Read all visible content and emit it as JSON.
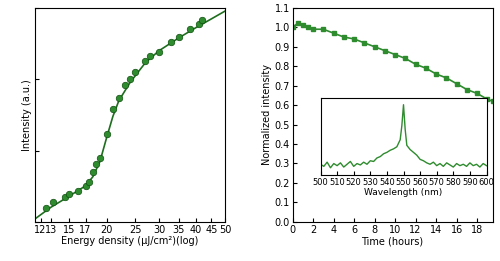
{
  "chart_data": [
    {
      "type": "scatter",
      "x_label": "Energy density (μJ/cm²)(log)",
      "y_label": "Intensity (a.u.)",
      "log": true,
      "tick_labels": "x",
      "xlim": [
        11.5,
        50
      ],
      "xticks": [
        12,
        13,
        15,
        17,
        20,
        25,
        30,
        35,
        40,
        45,
        50
      ],
      "ylim": [
        1,
        1000
      ],
      "yticks": [
        1,
        10,
        100,
        1000
      ],
      "series": [
        {
          "type": "scatter",
          "color": "#2e8b2e",
          "marker": "circle",
          "x": [
            12.5,
            13.2,
            14.5,
            15,
            16,
            17,
            17.5,
            18,
            18.5,
            19,
            20,
            21,
            22,
            23,
            24,
            25,
            27,
            28,
            30,
            33,
            35,
            38,
            41,
            42
          ],
          "values": [
            1.58,
            1.87,
            2.22,
            2.42,
            2.72,
            3.13,
            3.61,
            4.94,
            6.39,
            7.8,
            17.3,
            38.6,
            54.3,
            83.4,
            102,
            128,
            180,
            214,
            239,
            328,
            389,
            502,
            597,
            669
          ]
        },
        {
          "type": "line",
          "color": "#1f6e1f",
          "line_style": "solid",
          "x": [
            11.5,
            13,
            15,
            17,
            18,
            19,
            20,
            21,
            22,
            24,
            27,
            30,
            35,
            40,
            45,
            50
          ],
          "values": [
            1.1,
            1.6,
            2.3,
            3.2,
            4.3,
            7,
            15,
            30,
            50,
            90,
            170,
            250,
            380,
            530,
            700,
            900
          ]
        }
      ]
    },
    {
      "type": "line",
      "x_label": "Time (hours)",
      "y_label": "Normalized intensity",
      "xlim": [
        0,
        19.5
      ],
      "xticks": [
        0,
        2,
        4,
        6,
        8,
        10,
        12,
        14,
        16,
        18
      ],
      "ylim": [
        0,
        1.1
      ],
      "yticks": [
        {
          "value": 0,
          "label": "0.0"
        },
        {
          "value": 0.1,
          "label": "0.1"
        },
        {
          "value": 0.2,
          "label": "0.2"
        },
        {
          "value": 0.3,
          "label": "0.3"
        },
        {
          "value": 0.4,
          "label": "0.4"
        },
        {
          "value": 0.5,
          "label": "0.5"
        },
        {
          "value": 0.6,
          "label": "0.6"
        },
        {
          "value": 0.7,
          "label": "0.7"
        },
        {
          "value": 0.8,
          "label": "0.8"
        },
        {
          "value": 0.9,
          "label": "0.9"
        },
        {
          "value": 1.0,
          "label": "1.0"
        },
        {
          "value": 1.1,
          "label": "1.1"
        }
      ],
      "series": [
        {
          "color": "#2e8b2e",
          "marker": "square",
          "line_style": "solid",
          "x": [
            0,
            0.5,
            1,
            1.5,
            2,
            3,
            4,
            5,
            6,
            7,
            8,
            9,
            10,
            11,
            12,
            13,
            14,
            15,
            16,
            17,
            18,
            19,
            19.5
          ],
          "values": [
            1.0,
            1.02,
            1.01,
            1.0,
            0.99,
            0.99,
            0.97,
            0.95,
            0.94,
            0.92,
            0.9,
            0.88,
            0.86,
            0.84,
            0.81,
            0.79,
            0.76,
            0.74,
            0.71,
            0.68,
            0.66,
            0.63,
            0.62
          ]
        }
      ]
    },
    {
      "type": "line",
      "x_label": "Wavelength (nm)",
      "tick_labels": "x",
      "xlim": [
        500,
        600
      ],
      "xticks": [
        500,
        510,
        520,
        530,
        540,
        550,
        560,
        570,
        580,
        590,
        600
      ],
      "ylim": [
        0,
        1.1
      ],
      "yticks": [],
      "series": [
        {
          "color": "#2e8b2e",
          "line_style": "solid",
          "x": [
            500,
            502,
            504,
            506,
            508,
            510,
            512,
            514,
            516,
            518,
            520,
            522,
            524,
            526,
            528,
            530,
            532,
            534,
            536,
            538,
            540,
            542,
            544,
            546,
            548,
            549,
            550,
            551,
            552,
            554,
            556,
            558,
            560,
            562,
            564,
            566,
            568,
            570,
            572,
            574,
            576,
            578,
            580,
            582,
            584,
            586,
            588,
            590,
            592,
            594,
            596,
            598,
            600
          ],
          "values": [
            0.15,
            0.12,
            0.18,
            0.1,
            0.16,
            0.13,
            0.17,
            0.11,
            0.15,
            0.19,
            0.12,
            0.16,
            0.14,
            0.18,
            0.15,
            0.2,
            0.19,
            0.24,
            0.26,
            0.3,
            0.32,
            0.35,
            0.37,
            0.4,
            0.5,
            0.7,
            1.0,
            0.65,
            0.42,
            0.36,
            0.32,
            0.28,
            0.22,
            0.2,
            0.17,
            0.15,
            0.18,
            0.13,
            0.16,
            0.12,
            0.17,
            0.14,
            0.11,
            0.16,
            0.13,
            0.15,
            0.12,
            0.17,
            0.13,
            0.15,
            0.11,
            0.16,
            0.13
          ]
        }
      ]
    }
  ]
}
